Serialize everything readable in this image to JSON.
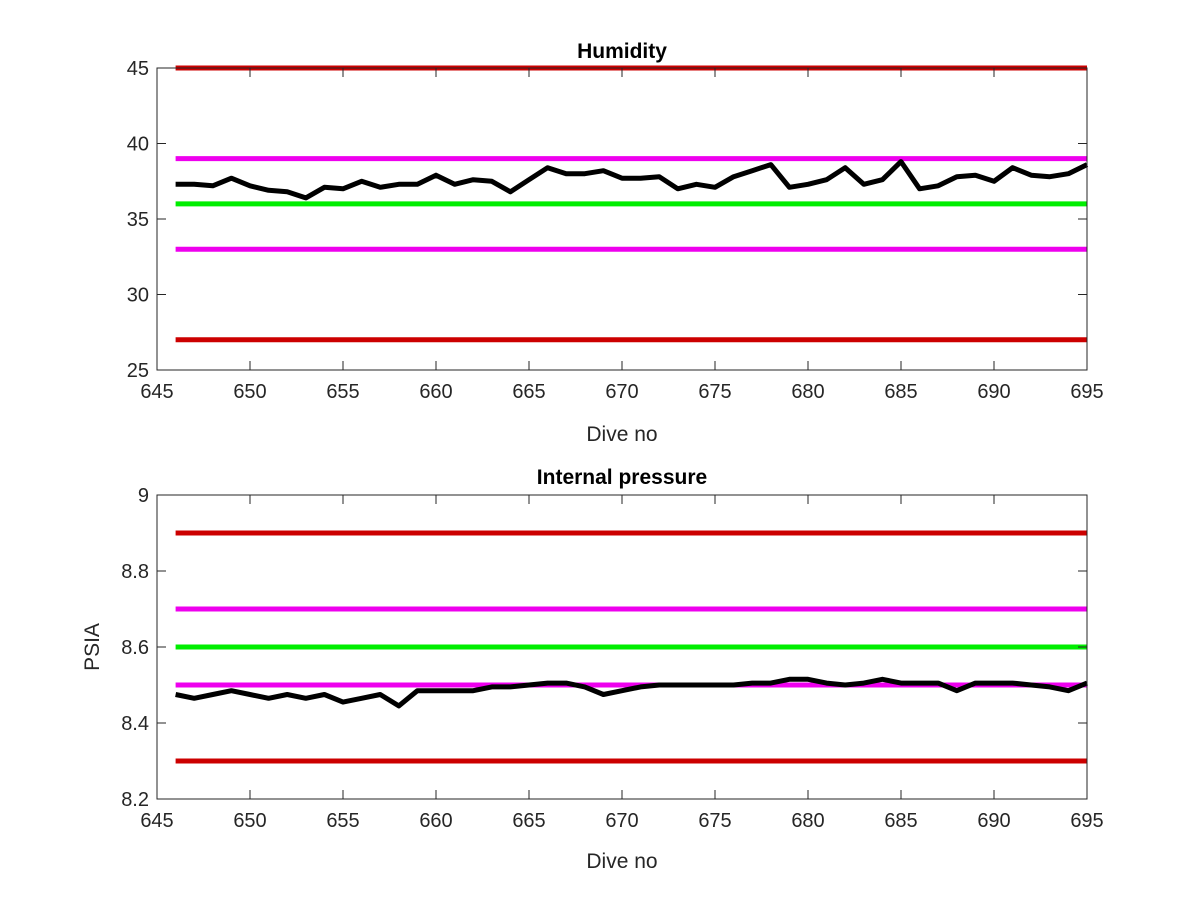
{
  "chart_data": [
    {
      "type": "line",
      "title": "Humidity",
      "xlabel": "Dive no",
      "ylabel": "",
      "xlim": [
        645,
        695
      ],
      "ylim": [
        25,
        45
      ],
      "xticks": [
        645,
        650,
        655,
        660,
        665,
        670,
        675,
        680,
        685,
        690,
        695
      ],
      "yticks": [
        25,
        30,
        35,
        40,
        45
      ],
      "ytick_labels": [
        "25",
        "30",
        "35",
        "40",
        "45"
      ],
      "grid": false,
      "threshold_lines": [
        {
          "y": 45,
          "color": "#cc0000"
        },
        {
          "y": 39,
          "color": "#ee00ee"
        },
        {
          "y": 36,
          "color": "#00ee00"
        },
        {
          "y": 33,
          "color": "#ee00ee"
        },
        {
          "y": 27,
          "color": "#cc0000"
        }
      ],
      "series": [
        {
          "color": "#000000",
          "x": [
            646,
            647,
            648,
            649,
            650,
            651,
            652,
            653,
            654,
            655,
            656,
            657,
            658,
            659,
            660,
            661,
            662,
            663,
            664,
            665,
            666,
            667,
            668,
            669,
            670,
            671,
            672,
            673,
            674,
            675,
            676,
            677,
            678,
            679,
            680,
            681,
            682,
            683,
            684,
            685,
            686,
            687,
            688,
            689,
            690,
            691,
            692,
            693,
            694,
            695
          ],
          "y": [
            37.3,
            37.3,
            37.2,
            37.7,
            37.2,
            36.9,
            36.8,
            36.4,
            37.1,
            37.0,
            37.5,
            37.1,
            37.3,
            37.3,
            37.9,
            37.3,
            37.6,
            37.5,
            36.8,
            37.6,
            38.4,
            38.0,
            38.0,
            38.2,
            37.7,
            37.7,
            37.8,
            37.0,
            37.3,
            37.1,
            37.8,
            38.2,
            38.6,
            37.1,
            37.3,
            37.6,
            38.4,
            37.3,
            37.6,
            38.8,
            37.0,
            37.2,
            37.8,
            37.9,
            37.5,
            38.4,
            37.9,
            37.8,
            38.0,
            38.6
          ]
        }
      ]
    },
    {
      "type": "line",
      "title": "Internal pressure",
      "xlabel": "Dive no",
      "ylabel": "PSIA",
      "xlim": [
        645,
        695
      ],
      "ylim": [
        8.2,
        9.0
      ],
      "xticks": [
        645,
        650,
        655,
        660,
        665,
        670,
        675,
        680,
        685,
        690,
        695
      ],
      "yticks": [
        8.2,
        8.4,
        8.6,
        8.8,
        9.0
      ],
      "ytick_labels": [
        "8.2",
        "8.4",
        "8.6",
        "8.8",
        "9"
      ],
      "grid": false,
      "threshold_lines": [
        {
          "y": 8.9,
          "color": "#cc0000"
        },
        {
          "y": 8.7,
          "color": "#ee00ee"
        },
        {
          "y": 8.6,
          "color": "#00ee00"
        },
        {
          "y": 8.5,
          "color": "#ee00ee"
        },
        {
          "y": 8.3,
          "color": "#cc0000"
        }
      ],
      "series": [
        {
          "color": "#000000",
          "x": [
            646,
            647,
            648,
            649,
            650,
            651,
            652,
            653,
            654,
            655,
            656,
            657,
            658,
            659,
            660,
            661,
            662,
            663,
            664,
            665,
            666,
            667,
            668,
            669,
            670,
            671,
            672,
            673,
            674,
            675,
            676,
            677,
            678,
            679,
            680,
            681,
            682,
            683,
            684,
            685,
            686,
            687,
            688,
            689,
            690,
            691,
            692,
            693,
            694,
            695
          ],
          "y": [
            8.475,
            8.465,
            8.475,
            8.485,
            8.475,
            8.465,
            8.475,
            8.465,
            8.475,
            8.455,
            8.465,
            8.475,
            8.445,
            8.485,
            8.485,
            8.485,
            8.485,
            8.495,
            8.495,
            8.5,
            8.505,
            8.505,
            8.495,
            8.475,
            8.485,
            8.495,
            8.5,
            8.5,
            8.5,
            8.5,
            8.5,
            8.505,
            8.505,
            8.515,
            8.515,
            8.505,
            8.5,
            8.505,
            8.515,
            8.505,
            8.505,
            8.505,
            8.485,
            8.505,
            8.505,
            8.505,
            8.5,
            8.495,
            8.485,
            8.505
          ]
        }
      ]
    }
  ]
}
